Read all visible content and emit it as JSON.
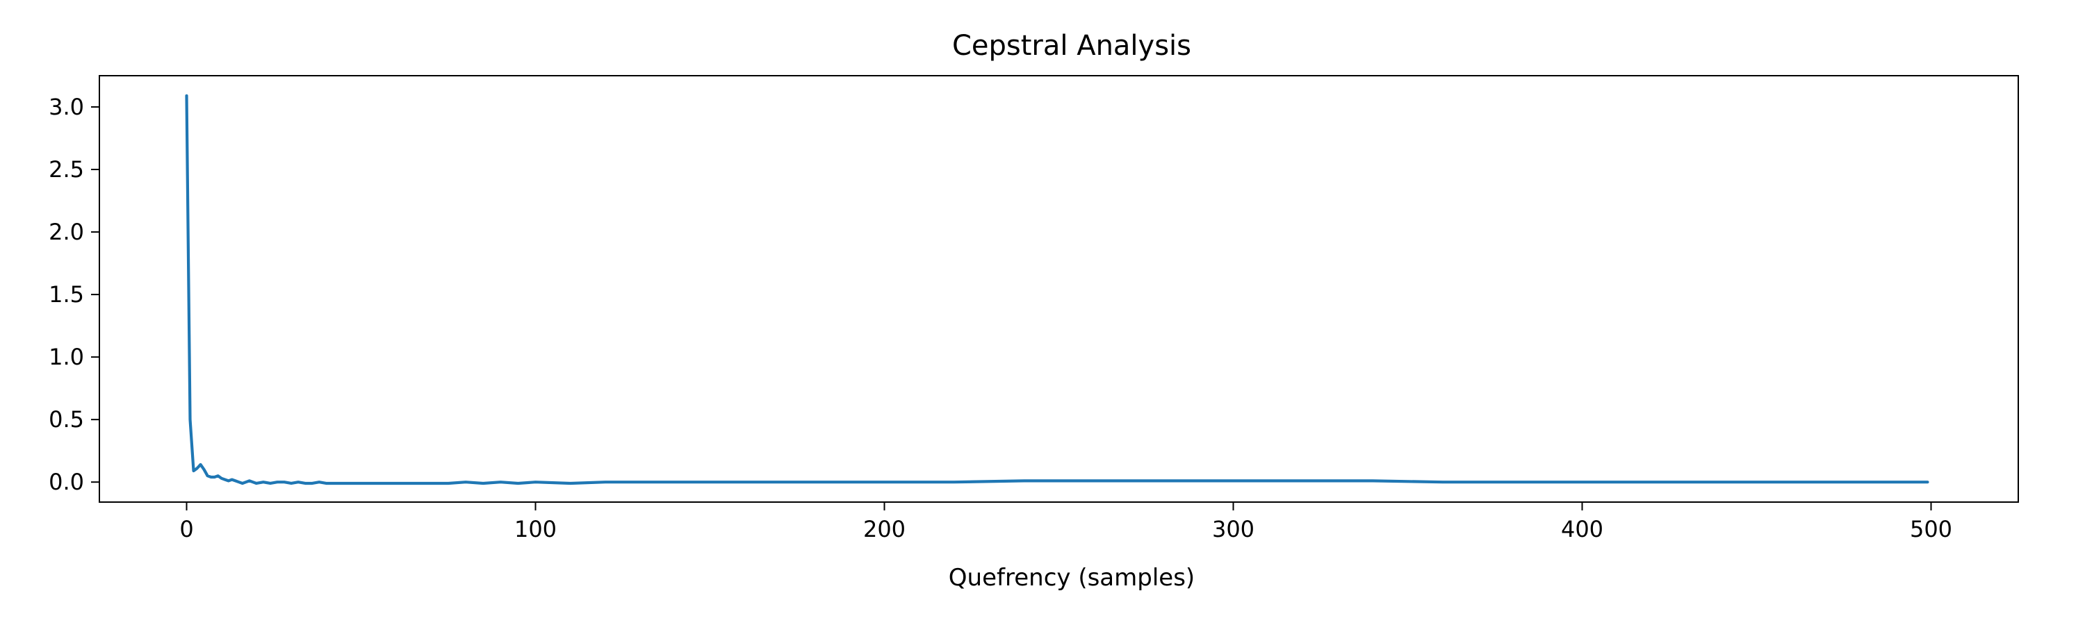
{
  "chart_data": {
    "type": "line",
    "title": "Cepstral Analysis",
    "xlabel": "Quefrency (samples)",
    "ylabel": "",
    "xlim": [
      -25,
      525
    ],
    "ylim": [
      -0.16,
      3.25
    ],
    "grid": false,
    "x_ticks": [
      0,
      100,
      200,
      300,
      400,
      500
    ],
    "y_ticks": [
      0.0,
      0.5,
      1.0,
      1.5,
      2.0,
      2.5,
      3.0
    ],
    "x_tick_labels": [
      "0",
      "100",
      "200",
      "300",
      "400",
      "500"
    ],
    "y_tick_labels": [
      "0.0",
      "0.5",
      "1.0",
      "1.5",
      "2.0",
      "2.5",
      "3.0"
    ],
    "series": [
      {
        "color": "#1f77b4",
        "x": [
          0,
          1,
          2,
          3,
          4,
          5,
          6,
          7,
          8,
          9,
          10,
          11,
          12,
          13,
          14,
          15,
          16,
          17,
          18,
          19,
          20,
          22,
          24,
          26,
          28,
          30,
          32,
          34,
          36,
          38,
          40,
          45,
          50,
          55,
          60,
          65,
          70,
          75,
          80,
          85,
          90,
          95,
          100,
          110,
          120,
          130,
          140,
          150,
          160,
          170,
          180,
          190,
          200,
          220,
          240,
          260,
          280,
          300,
          320,
          340,
          360,
          380,
          400,
          420,
          440,
          460,
          480,
          499
        ],
        "y": [
          3.09,
          0.5,
          0.09,
          0.11,
          0.14,
          0.1,
          0.05,
          0.04,
          0.04,
          0.05,
          0.03,
          0.02,
          0.01,
          0.02,
          0.01,
          0.0,
          -0.01,
          0.0,
          0.01,
          0.0,
          -0.01,
          0.0,
          -0.01,
          0.0,
          0.0,
          -0.01,
          0.0,
          -0.01,
          -0.01,
          0.0,
          -0.01,
          -0.01,
          -0.01,
          -0.01,
          -0.01,
          -0.01,
          -0.01,
          -0.01,
          0.0,
          -0.01,
          0.0,
          -0.01,
          0.0,
          -0.01,
          0.0,
          0.0,
          0.0,
          0.0,
          0.0,
          0.0,
          0.0,
          0.0,
          0.0,
          0.0,
          0.01,
          0.01,
          0.01,
          0.01,
          0.01,
          0.01,
          0.0,
          0.0,
          0.0,
          0.0,
          0.0,
          0.0,
          0.0,
          0.0
        ]
      }
    ]
  }
}
